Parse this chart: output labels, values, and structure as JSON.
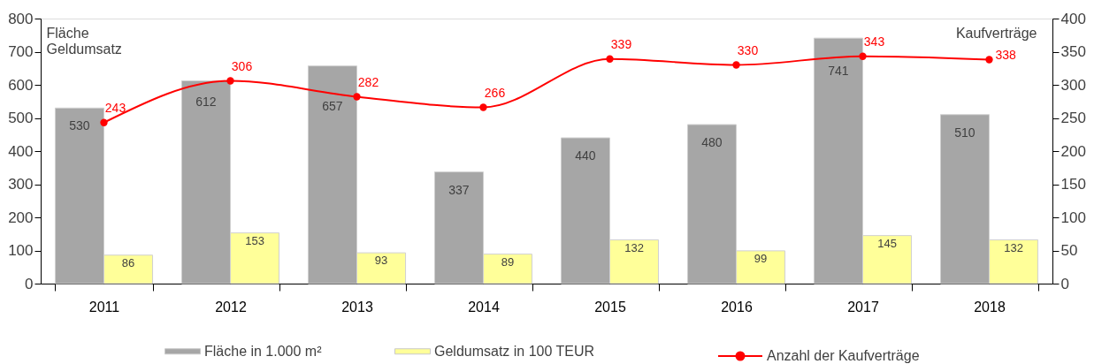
{
  "chart_data": {
    "type": "bar",
    "categories": [
      "2011",
      "2012",
      "2013",
      "2014",
      "2015",
      "2016",
      "2017",
      "2018"
    ],
    "ylabel": "Fläche\nGeldumsatz",
    "y2label": "Kaufverträge",
    "ylim": [
      0,
      800
    ],
    "yticks": [
      0,
      100,
      200,
      300,
      400,
      500,
      600,
      700,
      800
    ],
    "y2lim": [
      0,
      400
    ],
    "y2ticks": [
      0,
      50,
      100,
      150,
      200,
      250,
      300,
      350,
      400
    ],
    "series": [
      {
        "name": "Fläche in 1.000 m²",
        "color": "#a6a6a6",
        "values": [
          530,
          612,
          657,
          337,
          440,
          480,
          741,
          510
        ]
      },
      {
        "name": "Geldumsatz in 100 TEUR",
        "color": "#ffff99",
        "values": [
          86,
          153,
          93,
          89,
          132,
          99,
          145,
          132
        ]
      },
      {
        "name": "Anzahl der Kaufverträge",
        "type": "line",
        "axis": "y2",
        "color": "#ff0000",
        "marker": "circle",
        "line_style": "solid",
        "values": [
          243,
          306,
          282,
          266,
          339,
          330,
          343,
          338
        ]
      }
    ],
    "data_labels": true,
    "legend": "bottom",
    "grid": false
  }
}
